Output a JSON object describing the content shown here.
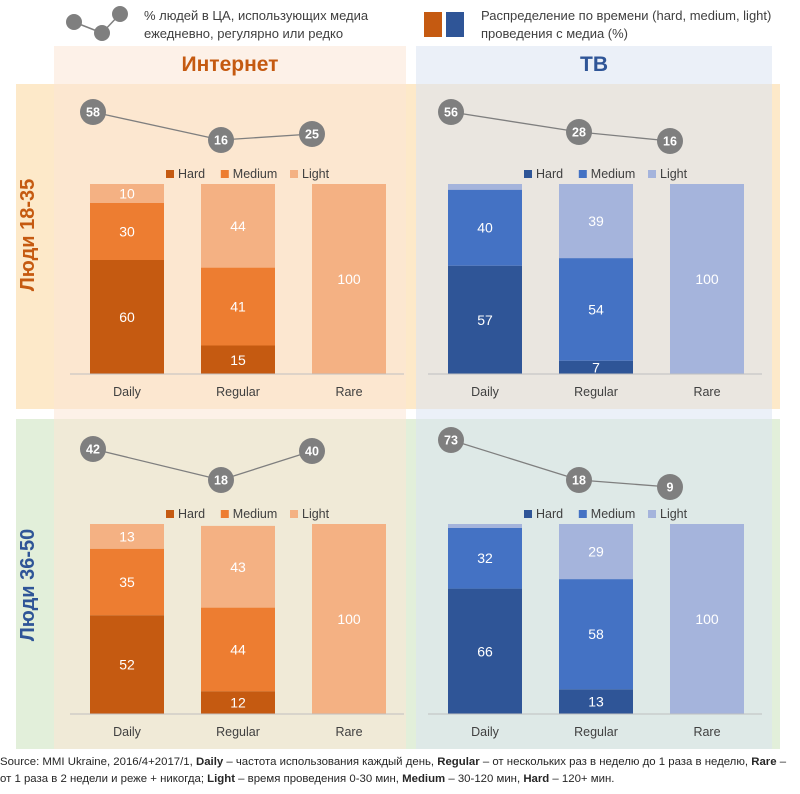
{
  "legend": {
    "reach_text": "% людей в ЦА, использующих медиа ежедневно, регулярно или редко",
    "distribution_text": "Распределение по времени (hard, medium, light) проведения с медиа (%)",
    "distribution_colors": [
      "#c55a11",
      "#2f5597"
    ],
    "reach_color": "#7f7f7f"
  },
  "columns": [
    {
      "title": "Интернет",
      "color": "#c55a11",
      "bg": "#fbe5d6"
    },
    {
      "title": "ТВ",
      "color": "#2f5597",
      "bg": "#dae3f3"
    }
  ],
  "rows": [
    {
      "label": "Люди 18-35",
      "color": "#c55a11",
      "bg": "#fde9c9"
    },
    {
      "label": "Люди 36-50",
      "color": "#2f5597",
      "bg": "#e2efda"
    }
  ],
  "chart_data": [
    {
      "type": "bar",
      "stacked": true,
      "title": "Интернет — Люди 18-35",
      "categories": [
        "Daily",
        "Regular",
        "Rare"
      ],
      "series": [
        {
          "name": "Hard",
          "values": [
            60,
            15,
            0
          ],
          "color": "#c55a11"
        },
        {
          "name": "Medium",
          "values": [
            30,
            41,
            0
          ],
          "color": "#ed7d31"
        },
        {
          "name": "Light",
          "values": [
            10,
            44,
            100
          ],
          "color": "#f4b183"
        }
      ],
      "labels": [
        [
          "60",
          "30",
          "10"
        ],
        [
          "15",
          "41",
          "44"
        ],
        [
          "",
          "",
          "100"
        ]
      ],
      "reach": [
        58,
        16,
        25
      ],
      "ylim": [
        0,
        100
      ]
    },
    {
      "type": "bar",
      "stacked": true,
      "title": "ТВ — Люди 18-35",
      "categories": [
        "Daily",
        "Regular",
        "Rare"
      ],
      "series": [
        {
          "name": "Hard",
          "values": [
            57,
            7,
            0
          ],
          "color": "#2f5597"
        },
        {
          "name": "Medium",
          "values": [
            40,
            54,
            0
          ],
          "color": "#4472c4"
        },
        {
          "name": "Light",
          "values": [
            3,
            39,
            100
          ],
          "color": "#a5b4dc"
        }
      ],
      "labels": [
        [
          "57",
          "40",
          ""
        ],
        [
          "7",
          "54",
          "39"
        ],
        [
          "",
          "",
          "100"
        ]
      ],
      "reach": [
        56,
        28,
        16
      ],
      "ylim": [
        0,
        100
      ]
    },
    {
      "type": "bar",
      "stacked": true,
      "title": "Интернет — Люди 36-50",
      "categories": [
        "Daily",
        "Regular",
        "Rare"
      ],
      "series": [
        {
          "name": "Hard",
          "values": [
            52,
            12,
            0
          ],
          "color": "#c55a11"
        },
        {
          "name": "Medium",
          "values": [
            35,
            44,
            0
          ],
          "color": "#ed7d31"
        },
        {
          "name": "Light",
          "values": [
            13,
            43,
            100
          ],
          "color": "#f4b183"
        }
      ],
      "labels": [
        [
          "52",
          "35",
          "13"
        ],
        [
          "12",
          "44",
          "43"
        ],
        [
          "",
          "",
          "100"
        ]
      ],
      "reach": [
        42,
        18,
        40
      ],
      "ylim": [
        0,
        100
      ]
    },
    {
      "type": "bar",
      "stacked": true,
      "title": "ТВ — Люди 36-50",
      "categories": [
        "Daily",
        "Regular",
        "Rare"
      ],
      "series": [
        {
          "name": "Hard",
          "values": [
            66,
            13,
            0
          ],
          "color": "#2f5597"
        },
        {
          "name": "Medium",
          "values": [
            32,
            58,
            0
          ],
          "color": "#4472c4"
        },
        {
          "name": "Light",
          "values": [
            2,
            29,
            100
          ],
          "color": "#a5b4dc"
        }
      ],
      "labels": [
        [
          "66",
          "32",
          ""
        ],
        [
          "13",
          "58",
          "29"
        ],
        [
          "",
          "",
          "100"
        ]
      ],
      "reach": [
        73,
        18,
        9
      ],
      "ylim": [
        0,
        100
      ]
    }
  ],
  "footer": {
    "source": "Source: MMI Ukraine, 2016/4+2017/1, ",
    "daily_term": "Daily",
    "daily_def": " – частота использования каждый день, ",
    "regular_term": "Regular",
    "regular_def": " – от нескольких раз в неделю до 1 раза в неделю, ",
    "rare_term": "Rare",
    "rare_def": " – от 1 раза в 2 недели и реже + никогда; ",
    "light_term": "Light",
    "light_def": " – время проведения 0-30 мин, ",
    "medium_term": "Medium",
    "medium_def": " – 30-120 мин, ",
    "hard_term": "Hard",
    "hard_def": " – 120+ мин."
  }
}
